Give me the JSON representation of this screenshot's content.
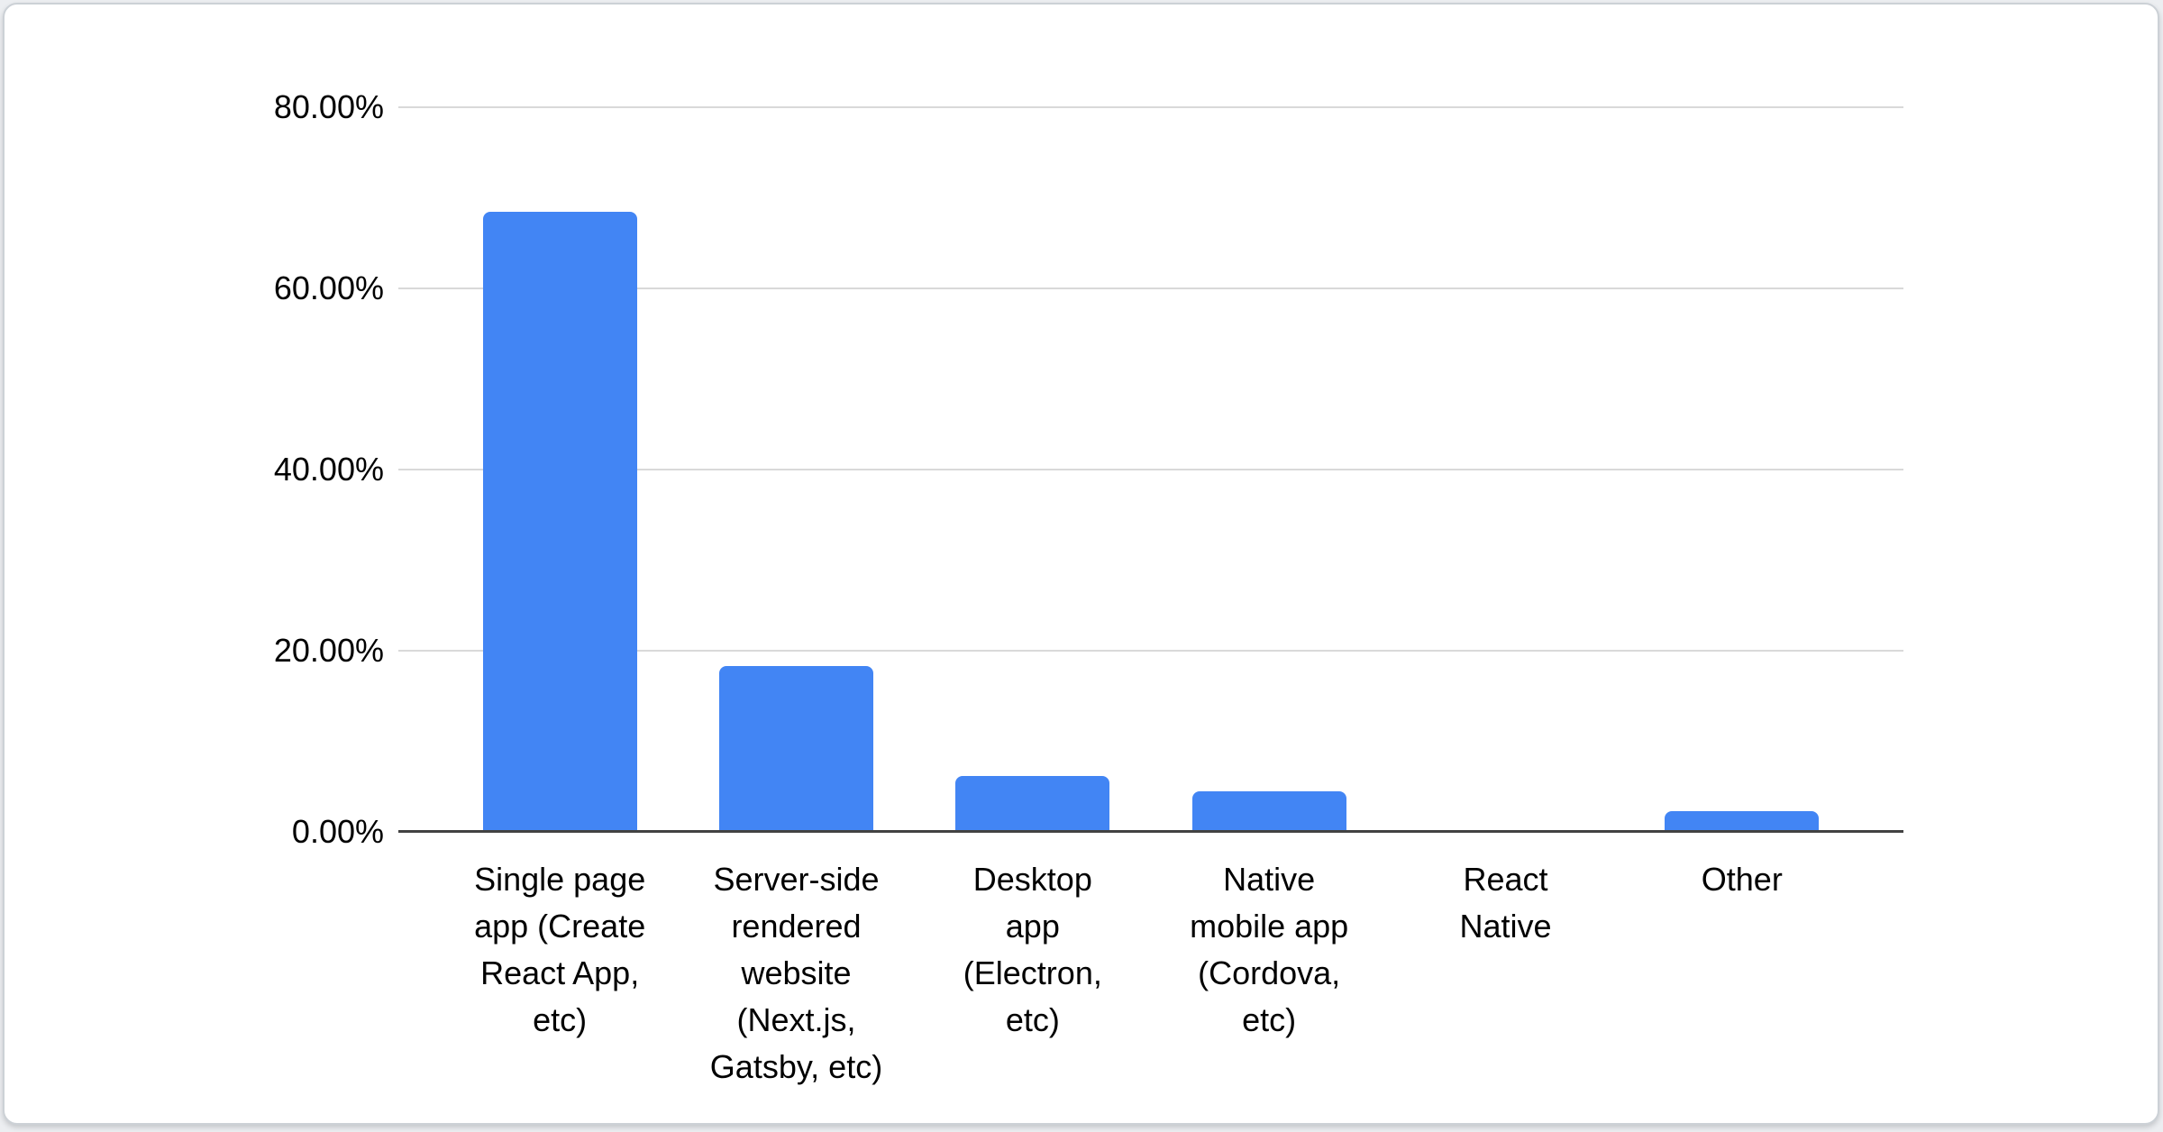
{
  "page": {
    "background_color": "#eceef1"
  },
  "card": {
    "background_color": "#ffffff",
    "border_color": "#ccd1d6"
  },
  "chart_data": {
    "type": "bar",
    "title": "",
    "xlabel": "",
    "ylabel": "",
    "categories": [
      "Single page\napp (Create\nReact App,\netc)",
      "Server-side\nrendered\nwebsite\n(Next.js,\nGatsby, etc)",
      "Desktop\napp\n(Electron,\netc)",
      "Native\nmobile app\n(Cordova,\netc)",
      "React\nNative",
      "Other"
    ],
    "values": [
      68.5,
      18.3,
      6.2,
      4.5,
      0,
      2.3
    ],
    "unit": "%",
    "ylim": [
      0,
      80
    ],
    "y_tick_values": [
      80,
      60,
      40,
      20,
      0
    ],
    "y_ticks": [
      "80.00%",
      "60.00%",
      "40.00%",
      "20.00%",
      "0.00%"
    ],
    "grid": true,
    "legend": false,
    "bar_color": "#4285f4",
    "gridline_color": "#d9d9d9",
    "axis_line_color": "#424242",
    "label_color": "#000000"
  }
}
